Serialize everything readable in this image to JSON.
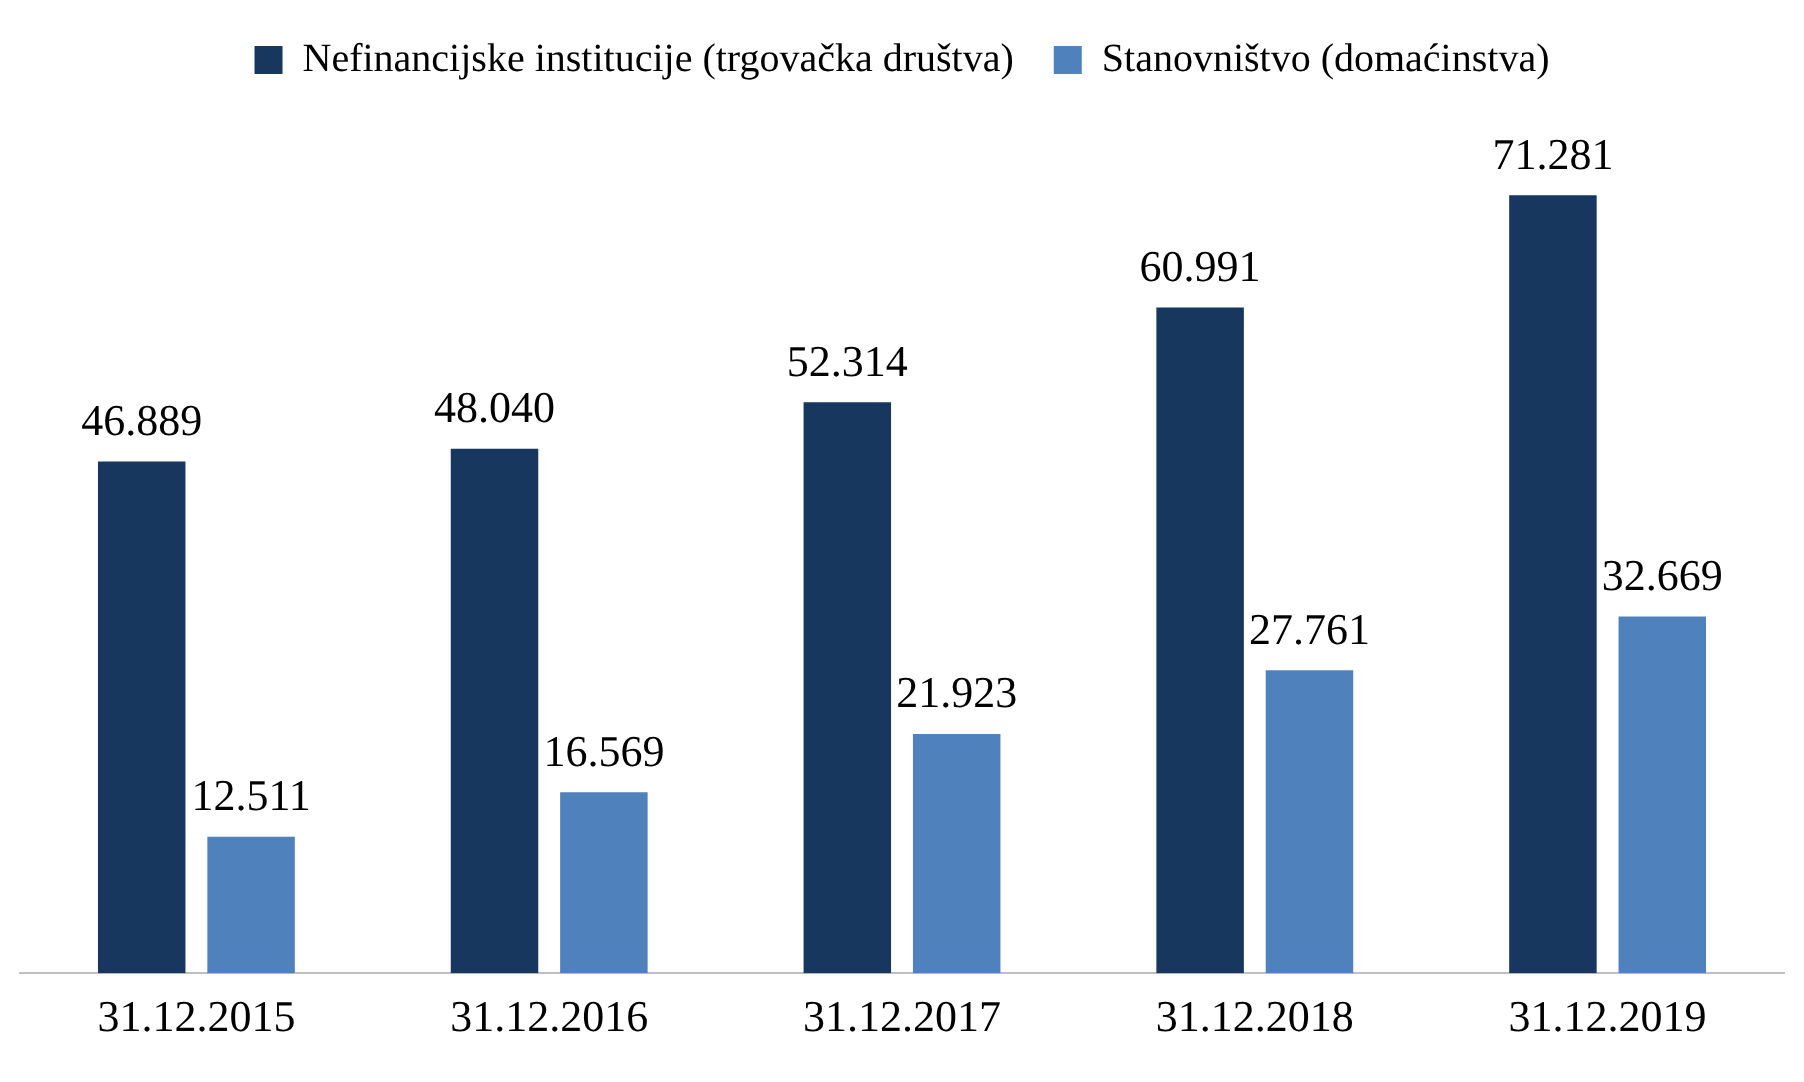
{
  "chart_data": {
    "type": "bar",
    "categories": [
      "31.12.2015",
      "31.12.2016",
      "31.12.2017",
      "31.12.2018",
      "31.12.2019"
    ],
    "series": [
      {
        "name": "Nefinancijske institucije (trgovačka društva)",
        "color": "#17375e",
        "values": [
          46889,
          48040,
          52314,
          60991,
          71281
        ],
        "value_labels": [
          "46.889",
          "48.040",
          "52.314",
          "60.991",
          "71.281"
        ]
      },
      {
        "name": "Stanovništvo (domaćinstva)",
        "color": "#4f81bd",
        "values": [
          12511,
          16569,
          21923,
          27761,
          32669
        ],
        "value_labels": [
          "12.511",
          "16.569",
          "21.923",
          "27.761",
          "32.669"
        ]
      }
    ],
    "legend": "top",
    "grid": false
  }
}
